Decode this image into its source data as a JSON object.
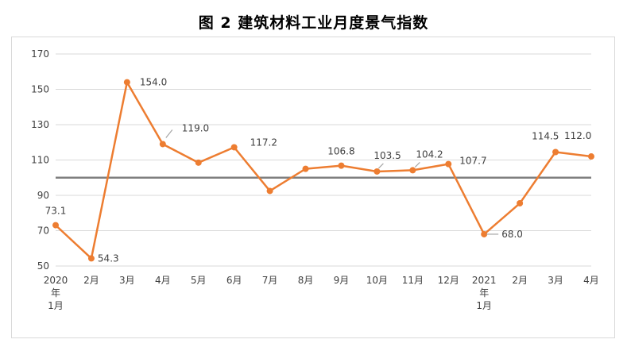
{
  "chart_data": {
    "type": "line",
    "title": "图 2  建筑材料工业月度景气指数",
    "x_labels": [
      [
        "2020",
        "年",
        "1月"
      ],
      [
        "2月"
      ],
      [
        "3月"
      ],
      [
        "4月"
      ],
      [
        "5月"
      ],
      [
        "6月"
      ],
      [
        "7月"
      ],
      [
        "8月"
      ],
      [
        "9月"
      ],
      [
        "10月"
      ],
      [
        "11月"
      ],
      [
        "12月"
      ],
      [
        "2021",
        "年",
        "1月"
      ],
      [
        "2月"
      ],
      [
        "3月"
      ],
      [
        "4月"
      ]
    ],
    "series": [
      {
        "values": [
          73.1,
          54.3,
          154.0,
          119.0,
          108.5,
          117.2,
          92.5,
          105.0,
          106.8,
          103.5,
          104.2,
          107.7,
          68.0,
          85.5,
          114.5,
          112.0
        ],
        "color": "#ed7d31",
        "data_labels": [
          "73.1",
          "54.3",
          "154.0",
          "119.0",
          null,
          "117.2",
          null,
          null,
          "106.8",
          "103.5",
          "104.2",
          "107.7",
          "68.0",
          null,
          "114.5",
          "112.0"
        ]
      }
    ],
    "reference_line": {
      "value": 100,
      "color": "#7f7f7f"
    },
    "ylim": [
      50,
      170
    ],
    "yticks": [
      "50",
      "70",
      "90",
      "110",
      "130",
      "150",
      "170"
    ],
    "grid": true,
    "gridline_color": "#d9d9d9"
  }
}
